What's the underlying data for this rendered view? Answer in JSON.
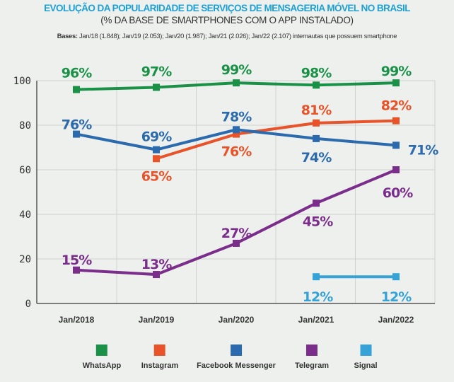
{
  "header": {
    "title": "EVOLUÇÃO DA POPULARIDADE DE SERVIÇOS DE MENSAGERIA MÓVEL NO BRASIL",
    "subtitle": "(% DA BASE DE SMARTPHONES COM O APP INSTALADO)",
    "bases_label": "Bases:",
    "bases_text": " Jan/18 (1.848); Jan/19 (2.053); Jan/20 (1.987); Jan/21 (2.026); Jan/22 (2.107) internautas que possuem smartphone"
  },
  "chart_data": {
    "type": "line",
    "categories": [
      "Jan/2018",
      "Jan/2019",
      "Jan/2020",
      "Jan/2021",
      "Jan/2022"
    ],
    "ylim": [
      0,
      100
    ],
    "yticks": [
      "0",
      "20",
      "40",
      "60",
      "80",
      "100"
    ],
    "grid": true,
    "legend_position": "bottom",
    "series": [
      {
        "name": "WhatsApp",
        "color": "#1a9146",
        "values": [
          96,
          97,
          99,
          98,
          99
        ],
        "labels": [
          "96%",
          "97%",
          "99%",
          "98%",
          "99%"
        ]
      },
      {
        "name": "Instagram",
        "color": "#e8532a",
        "values": [
          null,
          65,
          76,
          81,
          82
        ],
        "labels": [
          null,
          "65%",
          "76%",
          "81%",
          "82%"
        ]
      },
      {
        "name": "Facebook Messenger",
        "color": "#2a6aad",
        "values": [
          76,
          69,
          78,
          74,
          71
        ],
        "labels": [
          "76%",
          "69%",
          "78%",
          "74%",
          "71%"
        ]
      },
      {
        "name": "Telegram",
        "color": "#7b2d8b",
        "values": [
          15,
          13,
          27,
          45,
          60
        ],
        "labels": [
          "15%",
          "13%",
          "27%",
          "45%",
          "60%"
        ]
      },
      {
        "name": "Signal",
        "color": "#35a3d8",
        "values": [
          null,
          null,
          null,
          12,
          12
        ],
        "labels": [
          null,
          null,
          null,
          "12%",
          "12%"
        ]
      }
    ]
  }
}
